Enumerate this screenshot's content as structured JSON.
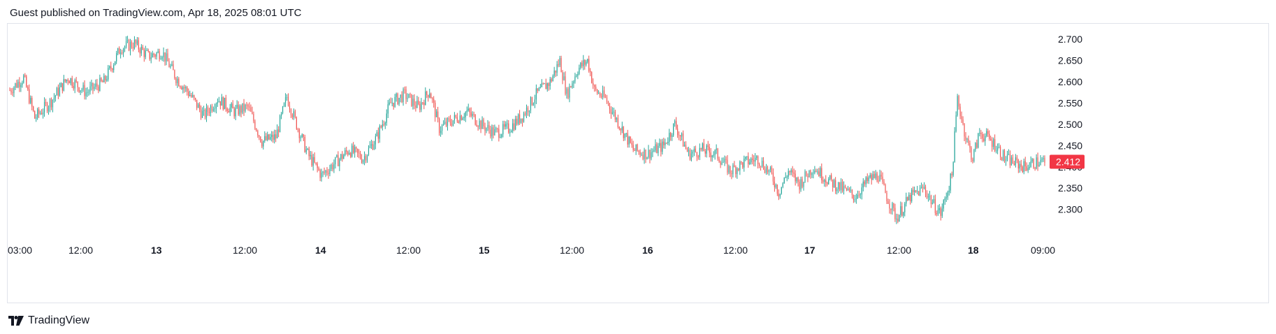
{
  "header": {
    "published": "Guest published on TradingView.com, Apr 18, 2025 08:01 UTC"
  },
  "footer": {
    "brand": "TradingView",
    "logo_icon": "tradingview-logo-icon"
  },
  "colors": {
    "up": "#26a69a",
    "down": "#ef5350",
    "price_tag": "#f23645",
    "axis_text": "#131722",
    "border": "#e0e3eb"
  },
  "price_axis": {
    "ticks": [
      "2.700",
      "2.650",
      "2.600",
      "2.550",
      "2.500",
      "2.450",
      "2.400",
      "2.350",
      "2.300"
    ],
    "last_price": "2.412"
  },
  "time_axis": {
    "labels": [
      {
        "text": "03:00",
        "bold": false
      },
      {
        "text": "12:00",
        "bold": false
      },
      {
        "text": "13",
        "bold": true
      },
      {
        "text": "12:00",
        "bold": false
      },
      {
        "text": "14",
        "bold": true
      },
      {
        "text": "12:00",
        "bold": false
      },
      {
        "text": "15",
        "bold": true
      },
      {
        "text": "12:00",
        "bold": false
      },
      {
        "text": "16",
        "bold": true
      },
      {
        "text": "12:00",
        "bold": false
      },
      {
        "text": "17",
        "bold": true
      },
      {
        "text": "12:00",
        "bold": false
      },
      {
        "text": "18",
        "bold": true
      },
      {
        "text": "09:00",
        "bold": false
      }
    ]
  },
  "chart_data": {
    "type": "candlestick",
    "ylim": [
      2.26,
      2.72
    ],
    "grid": false,
    "last_price": 2.412,
    "anchor_closes": [
      [
        0,
        2.58
      ],
      [
        10,
        2.61
      ],
      [
        18,
        2.515
      ],
      [
        30,
        2.555
      ],
      [
        42,
        2.61
      ],
      [
        55,
        2.575
      ],
      [
        68,
        2.6
      ],
      [
        80,
        2.68
      ],
      [
        90,
        2.69
      ],
      [
        100,
        2.66
      ],
      [
        110,
        2.67
      ],
      [
        120,
        2.61
      ],
      [
        130,
        2.57
      ],
      [
        140,
        2.52
      ],
      [
        150,
        2.56
      ],
      [
        162,
        2.53
      ],
      [
        172,
        2.54
      ],
      [
        182,
        2.46
      ],
      [
        192,
        2.47
      ],
      [
        200,
        2.565
      ],
      [
        207,
        2.5
      ],
      [
        215,
        2.43
      ],
      [
        225,
        2.38
      ],
      [
        235,
        2.41
      ],
      [
        245,
        2.44
      ],
      [
        255,
        2.42
      ],
      [
        265,
        2.47
      ],
      [
        275,
        2.55
      ],
      [
        285,
        2.57
      ],
      [
        295,
        2.54
      ],
      [
        303,
        2.58
      ],
      [
        310,
        2.49
      ],
      [
        320,
        2.51
      ],
      [
        330,
        2.53
      ],
      [
        340,
        2.5
      ],
      [
        350,
        2.48
      ],
      [
        360,
        2.49
      ],
      [
        370,
        2.52
      ],
      [
        380,
        2.57
      ],
      [
        390,
        2.6
      ],
      [
        397,
        2.65
      ],
      [
        402,
        2.57
      ],
      [
        410,
        2.63
      ],
      [
        417,
        2.65
      ],
      [
        422,
        2.58
      ],
      [
        430,
        2.56
      ],
      [
        440,
        2.5
      ],
      [
        450,
        2.44
      ],
      [
        460,
        2.43
      ],
      [
        472,
        2.45
      ],
      [
        480,
        2.5
      ],
      [
        490,
        2.43
      ],
      [
        500,
        2.44
      ],
      [
        510,
        2.43
      ],
      [
        520,
        2.39
      ],
      [
        530,
        2.41
      ],
      [
        540,
        2.42
      ],
      [
        550,
        2.38
      ],
      [
        555,
        2.34
      ],
      [
        562,
        2.39
      ],
      [
        570,
        2.36
      ],
      [
        580,
        2.4
      ],
      [
        590,
        2.37
      ],
      [
        600,
        2.35
      ],
      [
        610,
        2.33
      ],
      [
        620,
        2.37
      ],
      [
        627,
        2.38
      ],
      [
        633,
        2.33
      ],
      [
        640,
        2.28
      ],
      [
        650,
        2.33
      ],
      [
        660,
        2.35
      ],
      [
        667,
        2.31
      ],
      [
        672,
        2.29
      ],
      [
        680,
        2.38
      ],
      [
        684,
        2.56
      ],
      [
        690,
        2.47
      ],
      [
        695,
        2.42
      ],
      [
        700,
        2.48
      ],
      [
        705,
        2.47
      ],
      [
        712,
        2.45
      ],
      [
        718,
        2.42
      ],
      [
        725,
        2.41
      ],
      [
        732,
        2.4
      ],
      [
        740,
        2.41
      ],
      [
        747,
        2.412
      ]
    ]
  }
}
